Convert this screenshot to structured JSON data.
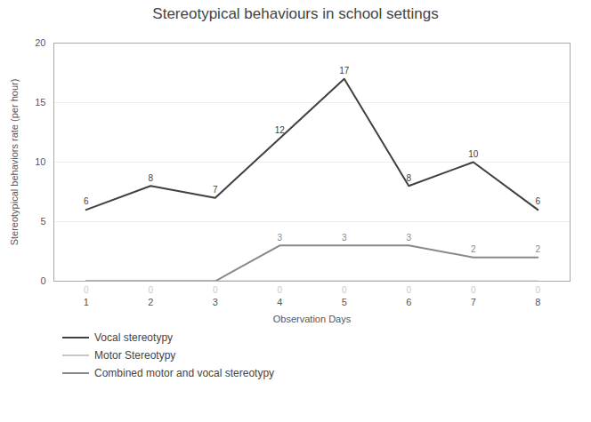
{
  "chart_data": {
    "type": "line",
    "title": "Stereotypical behaviours in school settings",
    "x_label": "Observation Days",
    "y_label": "Stereotypical behaviors rate (per hour)",
    "x": [
      1,
      2,
      3,
      4,
      5,
      6,
      7,
      8
    ],
    "series": [
      {
        "name": "Vocal stereotypy",
        "color": "#404040",
        "values": [
          6,
          8,
          7,
          12,
          17,
          8,
          10,
          6
        ]
      },
      {
        "name": "Motor Stereotypy",
        "color": "#c8c8c8",
        "values": [
          0,
          0,
          0,
          0,
          0,
          0,
          0,
          0
        ]
      },
      {
        "name": "Combined motor and vocal stereotypy",
        "color": "#888888",
        "values": [
          0,
          0,
          0,
          3,
          3,
          3,
          2,
          2
        ],
        "value_labels": [
          null,
          null,
          null,
          "3",
          "3",
          "3",
          "2",
          "2"
        ]
      }
    ],
    "xlim": [
      0.5,
      8.5
    ],
    "xticks": [
      1,
      2,
      3,
      4,
      5,
      6,
      7,
      8
    ],
    "ylim": [
      0,
      20
    ],
    "yticks": [
      0,
      5,
      10,
      15,
      20
    ],
    "grid": true,
    "data_labels": true,
    "legend": "bottom"
  }
}
